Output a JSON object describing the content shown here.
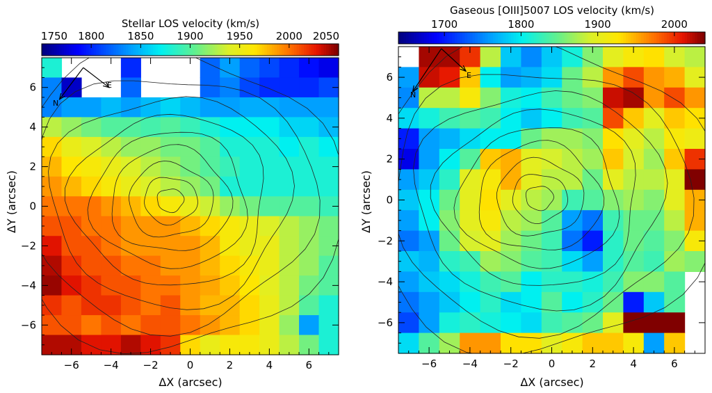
{
  "chart_data": [
    {
      "type": "heatmap",
      "title": "Stellar LOS velocity (km/s)",
      "xlabel": "ΔX (arcsec)",
      "ylabel": "ΔY (arcsec)",
      "xlim": [
        -7.5,
        7.5
      ],
      "ylim": [
        -7.5,
        7.5
      ],
      "xticks": [
        "-6",
        "-4",
        "-2",
        "0",
        "2",
        "4",
        "6"
      ],
      "yticks": [
        "-6",
        "-4",
        "-2",
        "0",
        "2",
        "4",
        "6"
      ],
      "colorbar": {
        "min": 1750,
        "max": 2050,
        "ticks": [
          "1750",
          "1800",
          "1850",
          "1900",
          "1950",
          "2000",
          "2050"
        ]
      },
      "compass": {
        "north": "N",
        "east": "E"
      },
      "grid_rows_top_to_bottom": [
        [
          1880,
          null,
          null,
          null,
          1800,
          null,
          null,
          null,
          1820,
          1840,
          1820,
          1810,
          1800,
          1790,
          1780
        ],
        [
          1830,
          1770,
          null,
          null,
          1820,
          null,
          null,
          null,
          1820,
          1830,
          1810,
          1800,
          1800,
          1800,
          1810
        ],
        [
          1830,
          1840,
          1840,
          1850,
          1840,
          1850,
          1860,
          1850,
          1840,
          1840,
          1845,
          1845,
          1840,
          1840,
          1840
        ],
        [
          1930,
          1920,
          1910,
          1900,
          1900,
          1895,
          1900,
          1890,
          1880,
          1870,
          1870,
          1870,
          1860,
          1860,
          1850
        ],
        [
          1970,
          1950,
          1940,
          1930,
          1920,
          1920,
          1910,
          1910,
          1900,
          1880,
          1880,
          1880,
          1870,
          1880,
          1870
        ],
        [
          1980,
          1965,
          1960,
          1950,
          1940,
          1930,
          1920,
          1910,
          1900,
          1890,
          1880,
          1880,
          1880,
          1880,
          1880
        ],
        [
          1990,
          1980,
          1970,
          1960,
          1950,
          1940,
          1930,
          1920,
          1910,
          1880,
          1880,
          1880,
          1880,
          1880,
          1880
        ],
        [
          2000,
          2000,
          2000,
          1990,
          1980,
          1970,
          1960,
          1950,
          1935,
          1920,
          1910,
          1900,
          1900,
          1900,
          1890
        ],
        [
          2010,
          2010,
          2000,
          2000,
          1990,
          1990,
          1990,
          1980,
          1970,
          1960,
          1950,
          1940,
          1930,
          1920,
          1910
        ],
        [
          2030,
          2010,
          2010,
          2000,
          1990,
          1990,
          1990,
          1990,
          1980,
          1960,
          1950,
          1950,
          1930,
          1920,
          1910
        ],
        [
          2040,
          2020,
          2010,
          2010,
          2000,
          2000,
          1990,
          1990,
          1980,
          1970,
          1960,
          1950,
          1930,
          1920,
          1900
        ],
        [
          2045,
          2030,
          2020,
          2010,
          2010,
          2000,
          2000,
          1990,
          1985,
          1975,
          1965,
          1945,
          1930,
          1910,
          1900
        ],
        [
          2020,
          2010,
          2020,
          2020,
          2010,
          2000,
          2010,
          1990,
          1980,
          1980,
          1970,
          1950,
          1930,
          1900,
          1880
        ],
        [
          2010,
          2010,
          2000,
          2010,
          2000,
          2010,
          2010,
          2000,
          1990,
          1980,
          1970,
          1950,
          1920,
          1840,
          1880
        ],
        [
          2040,
          2040,
          2030,
          2030,
          2040,
          2030,
          2020,
          1970,
          1950,
          1960,
          1960,
          1950,
          1930,
          1910,
          1880
        ]
      ]
    },
    {
      "type": "heatmap",
      "title": "Gaseous [OIII]5007 LOS velocity (km/s)",
      "xlabel": "ΔX (arcsec)",
      "ylabel": "ΔY (arcsec)",
      "xlim": [
        -7.5,
        7.5
      ],
      "ylim": [
        -7.5,
        7.5
      ],
      "xticks": [
        "-6",
        "-4",
        "-2",
        "0",
        "2",
        "4",
        "6"
      ],
      "yticks": [
        "-6",
        "-4",
        "-2",
        "0",
        "2",
        "4",
        "6"
      ],
      "colorbar": {
        "min": 1640,
        "max": 2040,
        "ticks": [
          "1700",
          "1800",
          "1900",
          "2000"
        ]
      },
      "compass": {
        "north": "N",
        "east": "E"
      },
      "grid_rows_top_to_bottom": [
        [
          null,
          2030,
          2030,
          2000,
          1880,
          1780,
          1750,
          1780,
          1810,
          1860,
          1900,
          1920,
          1930,
          1890,
          1880
        ],
        [
          1760,
          2020,
          2010,
          1940,
          1800,
          1760,
          1770,
          1790,
          1850,
          1880,
          1960,
          1990,
          1960,
          1950,
          1900
        ],
        [
          1750,
          1880,
          1880,
          1920,
          1860,
          1810,
          1800,
          1830,
          1850,
          1860,
          2020,
          2030,
          1960,
          1990,
          1960
        ],
        [
          1790,
          1810,
          1830,
          1840,
          1830,
          1800,
          1780,
          1800,
          1830,
          1840,
          1990,
          1940,
          1900,
          1940,
          1930
        ],
        [
          1700,
          1760,
          1770,
          1790,
          1800,
          1800,
          1850,
          1870,
          1870,
          1860,
          1930,
          1900,
          1880,
          1920,
          1910
        ],
        [
          1680,
          1760,
          1800,
          1840,
          1940,
          1950,
          1900,
          1890,
          1880,
          1870,
          1940,
          1890,
          1870,
          1940,
          2000
        ],
        [
          1760,
          1780,
          1820,
          1900,
          1920,
          1950,
          1900,
          1880,
          1880,
          1850,
          1900,
          1880,
          1880,
          1900,
          2040
        ],
        [
          1780,
          1800,
          1850,
          1900,
          1930,
          1900,
          1880,
          1870,
          1830,
          1840,
          1860,
          1870,
          1860,
          1900,
          1950
        ],
        [
          1760,
          1800,
          1860,
          1900,
          1920,
          1880,
          1870,
          1840,
          1760,
          1740,
          1830,
          1850,
          1850,
          1880,
          1950
        ],
        [
          1740,
          1760,
          1850,
          1890,
          1900,
          1870,
          1850,
          1830,
          1740,
          1700,
          1820,
          1850,
          1840,
          1860,
          1920
        ],
        [
          1780,
          1770,
          1820,
          1830,
          1870,
          1860,
          1840,
          1830,
          1790,
          1760,
          1820,
          1840,
          1830,
          1870,
          1860
        ],
        [
          1760,
          1780,
          1790,
          1810,
          1830,
          1840,
          1800,
          1820,
          1820,
          1810,
          1830,
          1860,
          1860,
          1840,
          null
        ],
        [
          1740,
          1760,
          1780,
          1800,
          1820,
          1790,
          1800,
          1840,
          1800,
          1820,
          1850,
          1700,
          1780,
          1840,
          null
        ],
        [
          1720,
          1760,
          1810,
          1820,
          1810,
          1800,
          1790,
          1830,
          1840,
          1850,
          1900,
          2040,
          2040,
          2040,
          null
        ],
        [
          1790,
          1840,
          1870,
          1960,
          1960,
          1930,
          1930,
          1900,
          1920,
          1940,
          1940,
          1920,
          1760,
          1940,
          null
        ]
      ]
    }
  ]
}
